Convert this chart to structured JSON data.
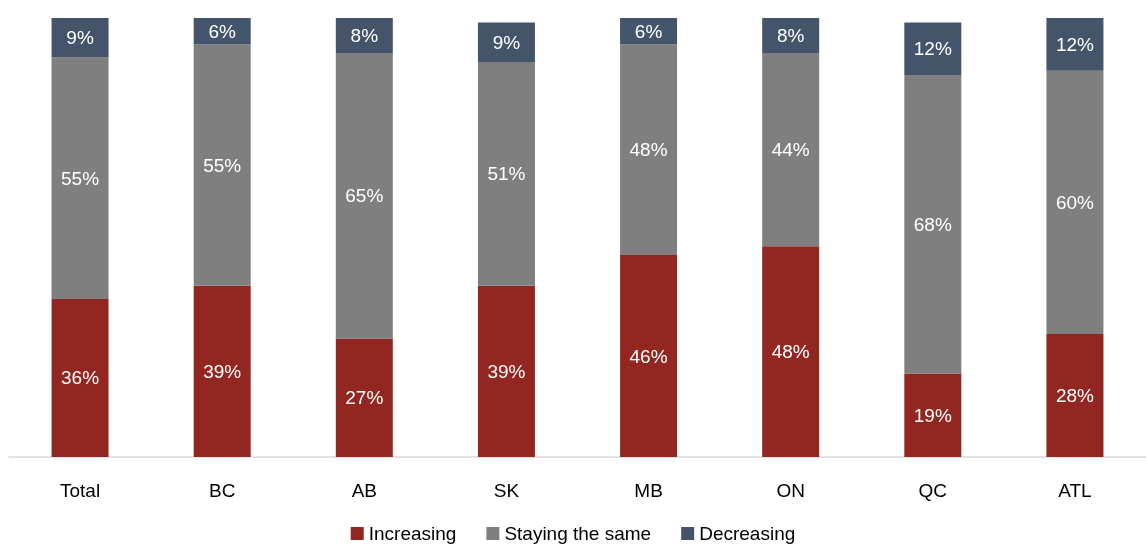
{
  "chart_data": {
    "type": "bar",
    "stacked": true,
    "categories": [
      "Total",
      "BC",
      "AB",
      "SK",
      "MB",
      "ON",
      "QC",
      "ATL"
    ],
    "series": [
      {
        "name": "Increasing",
        "color": "#922620",
        "values": [
          36,
          39,
          27,
          39,
          46,
          48,
          19,
          28
        ],
        "value_labels": [
          "36%",
          "39%",
          "27%",
          "39%",
          "46%",
          "48%",
          "19%",
          "28%"
        ]
      },
      {
        "name": "Staying the same",
        "color": "#7f7f7f",
        "values": [
          55,
          55,
          65,
          51,
          48,
          44,
          68,
          60
        ],
        "value_labels": [
          "55%",
          "55%",
          "65%",
          "51%",
          "48%",
          "44%",
          "68%",
          "60%"
        ]
      },
      {
        "name": "Decreasing",
        "color": "#44546a",
        "values": [
          9,
          6,
          8,
          9,
          6,
          8,
          12,
          12
        ],
        "value_labels": [
          "9%",
          "6%",
          "8%",
          "9%",
          "6%",
          "8%",
          "12%",
          "12%"
        ]
      }
    ],
    "ylim": [
      0,
      100
    ],
    "tick_labels": "x",
    "legend": "bottom"
  }
}
